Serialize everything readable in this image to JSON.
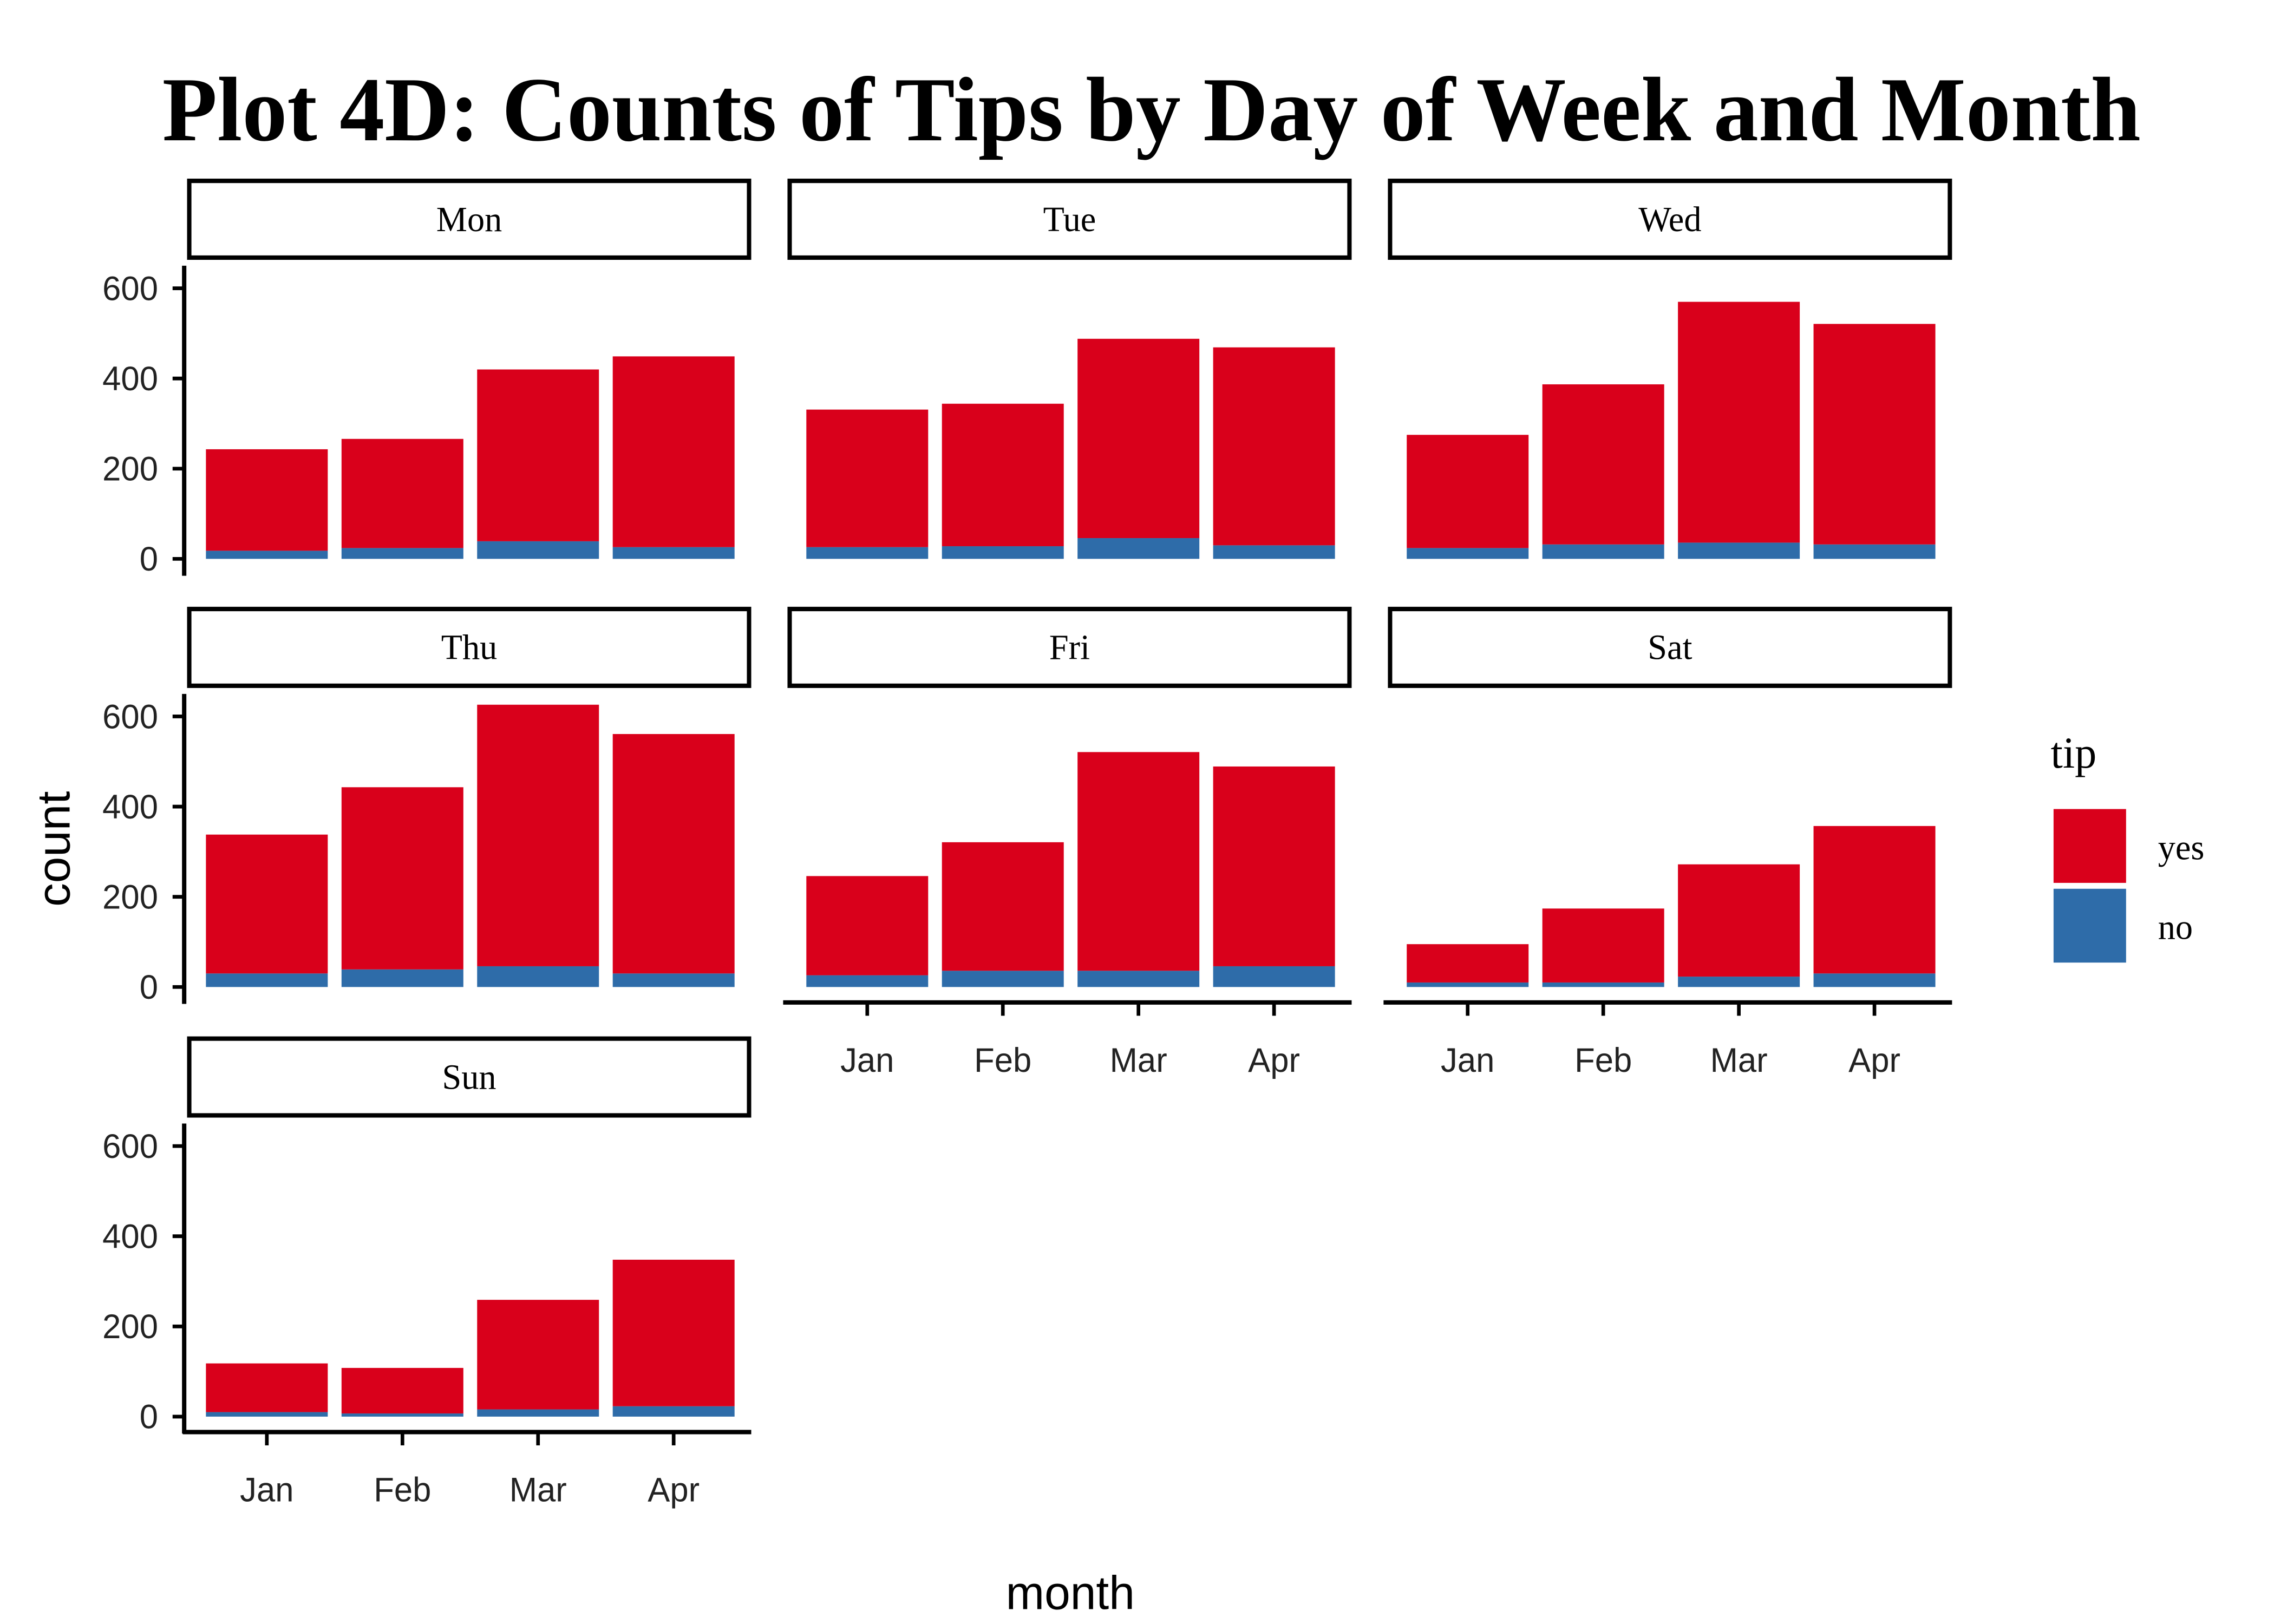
{
  "chart_data": {
    "type": "bar",
    "stacked": true,
    "title": "Plot 4D: Counts of Tips by Day of Week and Month",
    "x_label": "month",
    "y_label": "count",
    "legend_title": "tip",
    "legend_position": "right",
    "facets": [
      "Mon",
      "Tue",
      "Wed",
      "Thu",
      "Fri",
      "Sat",
      "Sun"
    ],
    "categories": [
      "Jan",
      "Feb",
      "Mar",
      "Apr"
    ],
    "ylim": [
      -31,
      650
    ],
    "yticks": [
      0,
      200,
      400,
      600
    ],
    "series": [
      {
        "name": "yes",
        "color": "#d9001b",
        "values": [
          [
            225,
            242,
            381,
            423
          ],
          [
            305,
            316,
            442,
            439
          ],
          [
            251,
            355,
            534,
            489
          ],
          [
            308,
            404,
            580,
            531
          ],
          [
            220,
            285,
            485,
            443
          ],
          [
            85,
            164,
            249,
            327
          ],
          [
            108,
            101,
            243,
            325
          ]
        ]
      },
      {
        "name": "no",
        "color": "#2e6ca9",
        "values": [
          [
            18,
            24,
            39,
            26
          ],
          [
            26,
            28,
            46,
            30
          ],
          [
            24,
            32,
            36,
            32
          ],
          [
            30,
            39,
            46,
            30
          ],
          [
            26,
            36,
            36,
            46
          ],
          [
            10,
            10,
            23,
            30
          ],
          [
            10,
            7,
            16,
            23
          ]
        ]
      }
    ]
  }
}
